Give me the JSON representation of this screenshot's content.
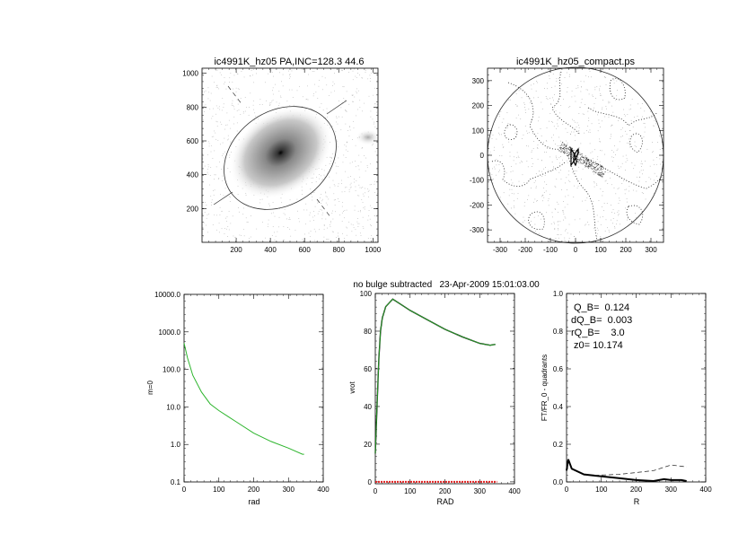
{
  "colors": {
    "profile": "#2db52d",
    "vrot_model": "#2db52d",
    "vrot_data": "#000000",
    "zero_line": "#e02020",
    "axes": "#000000"
  },
  "chart_data": [
    {
      "type": "heatmap",
      "title": "ic4991K_hz05 PA,INC=128.3 44.6",
      "xlim": [
        0,
        1030
      ],
      "ylim": [
        0,
        1030
      ],
      "xticks": [
        "200",
        "400",
        "600",
        "800",
        "1000"
      ],
      "yticks": [
        "200",
        "400",
        "600",
        "800",
        "1000"
      ],
      "galaxy_center": [
        460,
        530
      ],
      "position_angle": 128.3,
      "inclination": 44.6
    },
    {
      "type": "scatter",
      "title": "ic4991K_hz05_compact.ps",
      "xlim": [
        -350,
        350
      ],
      "ylim": [
        -350,
        350
      ],
      "xticks": [
        "-300",
        "-200",
        "-100",
        "0",
        "100",
        "200",
        "300"
      ],
      "yticks": [
        "-300",
        "-200",
        "-100",
        "0",
        "100",
        "200",
        "300"
      ],
      "circle_radius": 350
    },
    {
      "type": "line",
      "xlabel": "rad",
      "ylabel": "m=0",
      "xlim": [
        0,
        400
      ],
      "ylim": [
        0.1,
        10000
      ],
      "yscale": "log",
      "xticks": [
        "0",
        "100",
        "200",
        "300",
        "400"
      ],
      "yticks": [
        "0.1",
        "1.0",
        "10.0",
        "100.0",
        "1000.0",
        "10000.0"
      ],
      "x": [
        0,
        10,
        25,
        50,
        75,
        100,
        150,
        200,
        250,
        300,
        340,
        345
      ],
      "values": [
        500,
        200,
        70,
        25,
        12,
        8,
        4,
        2,
        1.2,
        0.8,
        0.55,
        0.55
      ]
    },
    {
      "type": "line",
      "title": "no bulge subtracted   23-Apr-2009 15:01:03.00",
      "xlabel": "RAD",
      "ylabel": "vrot",
      "xlim": [
        0,
        400
      ],
      "ylim": [
        -1,
        100
      ],
      "xticks": [
        "0",
        "100",
        "200",
        "300",
        "400"
      ],
      "yticks": [
        "0",
        "20",
        "40",
        "60",
        "80",
        "100"
      ],
      "x": [
        0,
        5,
        10,
        15,
        20,
        30,
        50,
        75,
        100,
        150,
        200,
        250,
        300,
        330,
        345
      ],
      "values": [
        15,
        40,
        65,
        80,
        87,
        93,
        97,
        94,
        91,
        86,
        81,
        77,
        73.5,
        72.5,
        73
      ],
      "zero_line": 0
    },
    {
      "type": "line",
      "xlabel": "R",
      "ylabel": "FT/FR_0 - quadrants",
      "xlim": [
        0,
        400
      ],
      "ylim": [
        0,
        1
      ],
      "xticks": [
        "0",
        "100",
        "200",
        "300",
        "400"
      ],
      "yticks": [
        "0.0",
        "0.2",
        "0.4",
        "0.6",
        "0.8",
        "1.0"
      ],
      "annotations": [
        "Q_B=  0.124",
        "dQ_B=  0.003",
        "rQ_B=    3.0",
        " z0= 10.174"
      ],
      "series": [
        {
          "style": "solid",
          "x": [
            0,
            5,
            15,
            50,
            100,
            150,
            200,
            250,
            280,
            300,
            330,
            345
          ],
          "values": [
            0.06,
            0.12,
            0.07,
            0.04,
            0.03,
            0.02,
            0.01,
            0.005,
            0.015,
            0.01,
            0.01,
            0.005
          ]
        },
        {
          "style": "dashed",
          "x": [
            80,
            150,
            200,
            250,
            300,
            345
          ],
          "values": [
            0.035,
            0.04,
            0.05,
            0.06,
            0.09,
            0.08
          ]
        }
      ]
    }
  ]
}
